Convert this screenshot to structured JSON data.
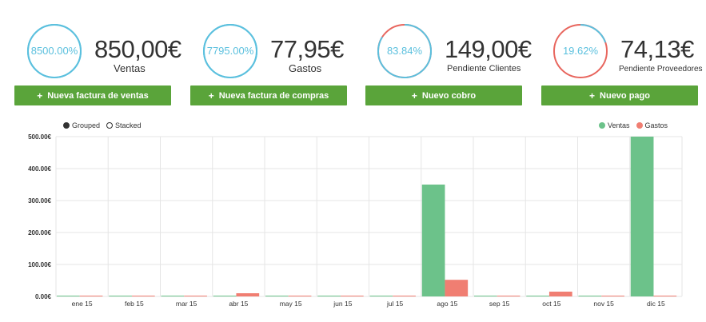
{
  "kpis": [
    {
      "ring_text": "8500.00%",
      "ring_fraction": 1.0,
      "ring_color": "#5bc0de",
      "value": "850,00€",
      "label": "Ventas"
    },
    {
      "ring_text": "7795.00%",
      "ring_fraction": 1.0,
      "ring_color": "#5bc0de",
      "value": "77,95€",
      "label": "Gastos"
    },
    {
      "ring_text": "83.84%",
      "ring_fraction": 0.8384,
      "ring_color": "#5bc0de",
      "ring_rest_color": "#e8665e",
      "value": "149,00€",
      "label": "Pendiente Clientes"
    },
    {
      "ring_text": "19.62%",
      "ring_fraction": 0.1962,
      "ring_color": "#5bc0de",
      "ring_rest_color": "#e8665e",
      "value": "74,13€",
      "label": "Pendiente Proveedores"
    }
  ],
  "actions": {
    "new_sales_invoice": "Nueva factura de ventas",
    "new_purchase_invoice": "Nueva factura de compras",
    "new_collection": "Nuevo cobro",
    "new_payment": "Nuevo pago",
    "plus_glyph": "+"
  },
  "chart_controls": {
    "grouped_label": "Grouped",
    "stacked_label": "Stacked",
    "selected": "grouped"
  },
  "colors": {
    "ventas": "#6cc28a",
    "gastos": "#f07e72",
    "button": "#5aa43a",
    "ring": "#5bc0de",
    "ring_rest": "#e8665e"
  },
  "chart_data": {
    "type": "bar",
    "mode": "grouped",
    "categories": [
      "ene 15",
      "feb 15",
      "mar 15",
      "abr 15",
      "may 15",
      "jun 15",
      "jul 15",
      "ago 15",
      "sep 15",
      "oct 15",
      "nov 15",
      "dic 15"
    ],
    "series": [
      {
        "name": "Ventas",
        "values": [
          0,
          0,
          0,
          0,
          0,
          0,
          0,
          350,
          0,
          0,
          0,
          500
        ]
      },
      {
        "name": "Gastos",
        "values": [
          0,
          0,
          0,
          10,
          0,
          0,
          0,
          52,
          0,
          15,
          0,
          0
        ]
      }
    ],
    "ylim": [
      0,
      500
    ],
    "yticks": [
      "0.00€",
      "100.00€",
      "200.00€",
      "300.00€",
      "400.00€",
      "500.00€"
    ],
    "grid": true,
    "legend_position": "top-right"
  }
}
